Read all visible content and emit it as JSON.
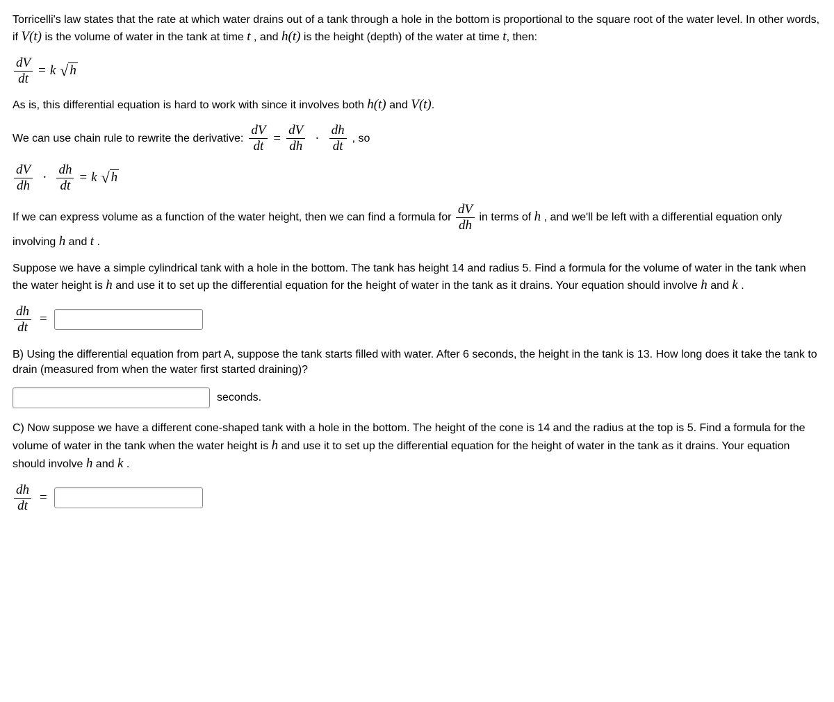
{
  "intro": {
    "p1a": "Torricelli's law states that the rate at which water drains out of a tank through a hole in the bottom is proportional to the square root of the water level. In other words, if ",
    "p1b": " is the volume of water in the tank at time ",
    "p1c": " , and ",
    "p1d": " is the height (depth) of the water at time ",
    "p1e": ", then:"
  },
  "eq1": {
    "numV": "dV",
    "denV": "dt",
    "eq": " = ",
    "k": "k",
    "arg": "h"
  },
  "chain": {
    "p2a": "As is, this differential equation is hard to work with since it involves both ",
    "p2b": " and ",
    "p2c": ".",
    "p3a": "We can use chain rule to rewrite the derivative: ",
    "p3b": " , so"
  },
  "eq2": {
    "f1n": "dV",
    "f1d": "dt",
    "f2n": "dV",
    "f2d": "dh",
    "f3n": "dh",
    "f3d": "dt",
    "eq": " = ",
    "dot": "·"
  },
  "eq3": {
    "f1n": "dV",
    "f1d": "dh",
    "f2n": "dh",
    "f2d": "dt",
    "eq": " = ",
    "k": "k",
    "arg": "h"
  },
  "explain": {
    "p4a": "If we can express volume as a function of the water height, then we can find a formula for ",
    "p4b": " in terms of ",
    "p4c": " , and we'll be left with a differential equation only involving ",
    "p4d": "  and ",
    "p4e": " ."
  },
  "partA": {
    "text1": "Suppose we have a simple cylindrical tank with a hole in the bottom. The tank has height 14 and radius 5.  Find a formula for the volume of water in the tank when the water height is ",
    "text2": "  and use it to set up the differential equation for the height of water in the tank as it drains.  Your equation should involve ",
    "text3": " and ",
    "text4": " ."
  },
  "dhdt": {
    "num": "dh",
    "den": "dt",
    "eq": " = "
  },
  "partB": {
    "label": "B) Using the differential equation from part A, suppose the tank starts filled with water. After 6 seconds, the height in the tank is 13. How long does it take the tank to drain (measured from when the water first started draining)?",
    "unit": "seconds."
  },
  "partC": {
    "text1": "C) Now suppose we have a different cone-shaped tank with a hole in the bottom. The height of the cone is 14 and the radius at the top is 5. Find a formula for the volume of water in the tank when the water height is ",
    "text2": " and use it to set up the differential equation for the height of water in the tank as it drains. Your equation should involve ",
    "text3": " and ",
    "text4": " ."
  },
  "vars": {
    "Vt": "V(t)",
    "t": "t",
    "ht": "h(t)",
    "h": "h",
    "k": "k",
    "dVdh_n": "dV",
    "dVdh_d": "dh"
  }
}
